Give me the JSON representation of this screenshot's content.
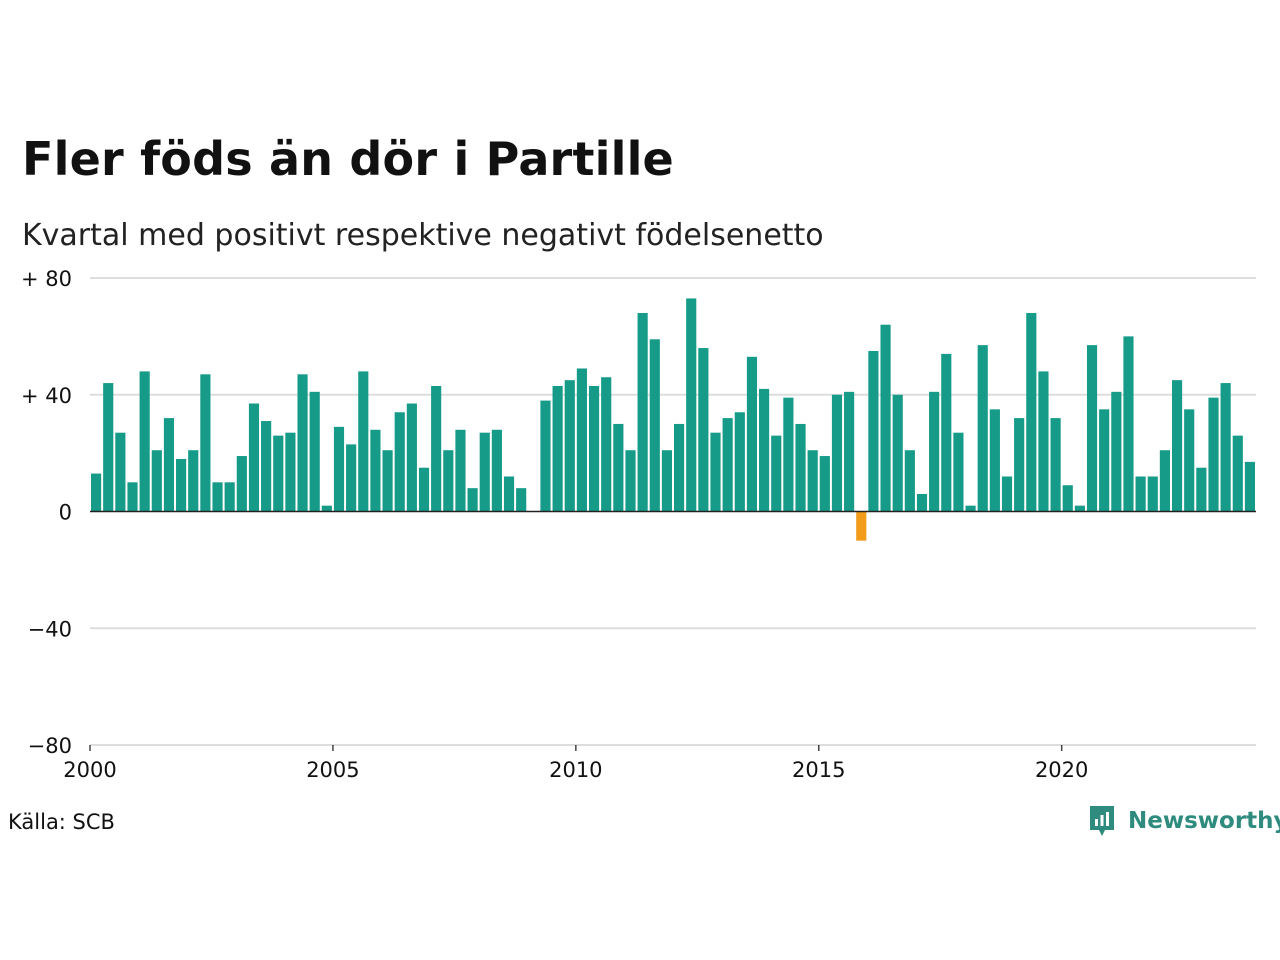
{
  "header": {
    "title": "Fler föds än dör i Partille",
    "subtitle": "Kvartal med positivt respektive negativt födelsenetto"
  },
  "footer": {
    "source": "Källa: SCB",
    "brand": "Newsworthy"
  },
  "colors": {
    "positive": "#169b89",
    "negative": "#f39c1c",
    "grid": "#dddddd",
    "baseline": "#222222",
    "brand": "#2e8b7e"
  },
  "chart_data": {
    "type": "bar",
    "title": "Fler föds än dör i Partille",
    "subtitle": "Kvartal med positivt respektive negativt födelsenetto",
    "xlabel": "",
    "ylabel": "",
    "ylim": [
      -80,
      80
    ],
    "grid": true,
    "y_ticks": [
      {
        "value": 80,
        "label": "+ 80"
      },
      {
        "value": 40,
        "label": "+ 40"
      },
      {
        "value": 0,
        "label": "0"
      },
      {
        "value": -40,
        "label": "−40"
      },
      {
        "value": -80,
        "label": "−80"
      }
    ],
    "x_ticks": [
      {
        "year": 2000,
        "label": "2000"
      },
      {
        "year": 2005,
        "label": "2005"
      },
      {
        "year": 2010,
        "label": "2010"
      },
      {
        "year": 2015,
        "label": "2015"
      },
      {
        "year": 2020,
        "label": "2020"
      }
    ],
    "first_quarter": "2000K1",
    "values": [
      13,
      44,
      27,
      10,
      48,
      21,
      32,
      18,
      21,
      47,
      10,
      10,
      19,
      37,
      31,
      26,
      27,
      47,
      41,
      2,
      29,
      23,
      48,
      28,
      21,
      34,
      37,
      15,
      43,
      21,
      28,
      8,
      27,
      28,
      12,
      8,
      0,
      38,
      43,
      45,
      49,
      43,
      46,
      30,
      21,
      68,
      59,
      21,
      30,
      73,
      56,
      27,
      32,
      34,
      53,
      42,
      26,
      39,
      30,
      21,
      19,
      40,
      41,
      -10,
      55,
      64,
      40,
      21,
      6,
      41,
      54,
      27,
      2,
      57,
      35,
      12,
      32,
      68,
      48,
      32,
      9,
      2,
      57,
      35,
      41,
      60,
      12,
      12,
      21,
      45,
      35,
      15,
      39,
      44,
      26,
      17
    ]
  }
}
